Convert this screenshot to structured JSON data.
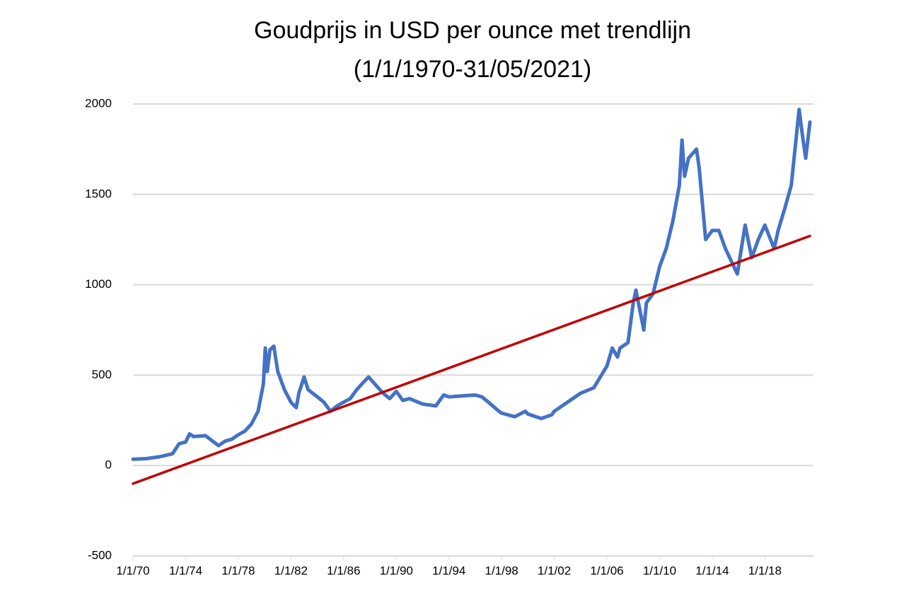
{
  "chart_data": {
    "type": "line",
    "title": [
      "Goudprijs in USD per ounce met trendlijn",
      "(1/1/1970-31/05/2021)"
    ],
    "xlim": [
      1970,
      2021.42
    ],
    "xticks": [
      {
        "value": 1970,
        "label": "1/1/70"
      },
      {
        "value": 1974,
        "label": "1/1/74"
      },
      {
        "value": 1978,
        "label": "1/1/78"
      },
      {
        "value": 1982,
        "label": "1/1/82"
      },
      {
        "value": 1986,
        "label": "1/1/86"
      },
      {
        "value": 1990,
        "label": "1/1/90"
      },
      {
        "value": 1994,
        "label": "1/1/94"
      },
      {
        "value": 1998,
        "label": "1/1/98"
      },
      {
        "value": 2002,
        "label": "1/1/02"
      },
      {
        "value": 2006,
        "label": "1/1/06"
      },
      {
        "value": 2010,
        "label": "1/1/10"
      },
      {
        "value": 2014,
        "label": "1/1/14"
      },
      {
        "value": 2018,
        "label": "1/1/18"
      }
    ],
    "ylim": [
      -500,
      2000
    ],
    "yticks": [
      -500,
      0,
      500,
      1000,
      1500,
      2000
    ],
    "grid": true,
    "series": [
      {
        "color": "#4472c4",
        "x": [
          1970,
          1971,
          1972,
          1973,
          1973.5,
          1974,
          1974.3,
          1974.6,
          1975.5,
          1976.5,
          1977,
          1977.5,
          1978,
          1978.5,
          1979,
          1979.5,
          1979.9,
          1980.05,
          1980.2,
          1980.4,
          1980.7,
          1981,
          1981.5,
          1982,
          1982.4,
          1982.6,
          1983,
          1983.3,
          1984,
          1984.5,
          1985,
          1985.5,
          1986,
          1986.5,
          1987,
          1987.5,
          1987.9,
          1988.5,
          1989,
          1989.5,
          1990,
          1990.5,
          1991,
          1992,
          1993,
          1993.6,
          1994,
          1995,
          1996,
          1996.5,
          1997,
          1997.8,
          1998,
          1999,
          1999.8,
          2000,
          2001,
          2001.8,
          2002,
          2003,
          2004,
          2005,
          2006,
          2006.4,
          2006.8,
          2007,
          2007.6,
          2008,
          2008.2,
          2008.8,
          2009,
          2009.5,
          2010,
          2010.5,
          2011,
          2011.5,
          2011.7,
          2011.9,
          2012.2,
          2012.8,
          2013,
          2013.5,
          2014,
          2014.5,
          2015,
          2015.9,
          2016.5,
          2017,
          2017.5,
          2018,
          2018.7,
          2019,
          2019.5,
          2020,
          2020.6,
          2020.9,
          2021.1,
          2021.42
        ],
        "values": [
          35,
          38,
          48,
          65,
          120,
          130,
          175,
          160,
          165,
          110,
          135,
          145,
          170,
          190,
          230,
          300,
          450,
          650,
          520,
          640,
          660,
          520,
          420,
          350,
          320,
          400,
          490,
          420,
          380,
          350,
          300,
          330,
          350,
          370,
          420,
          460,
          490,
          440,
          400,
          370,
          410,
          360,
          370,
          340,
          330,
          390,
          380,
          385,
          390,
          380,
          350,
          300,
          290,
          270,
          300,
          285,
          260,
          280,
          300,
          350,
          400,
          430,
          550,
          650,
          600,
          650,
          680,
          900,
          970,
          750,
          900,
          950,
          1100,
          1200,
          1350,
          1550,
          1800,
          1600,
          1700,
          1750,
          1650,
          1250,
          1300,
          1300,
          1200,
          1060,
          1330,
          1150,
          1250,
          1330,
          1200,
          1300,
          1420,
          1550,
          1970,
          1800,
          1700,
          1900
        ]
      },
      {
        "color": "#c00000",
        "x": [
          1970,
          2021.42
        ],
        "values": [
          -100,
          1270
        ]
      }
    ]
  }
}
